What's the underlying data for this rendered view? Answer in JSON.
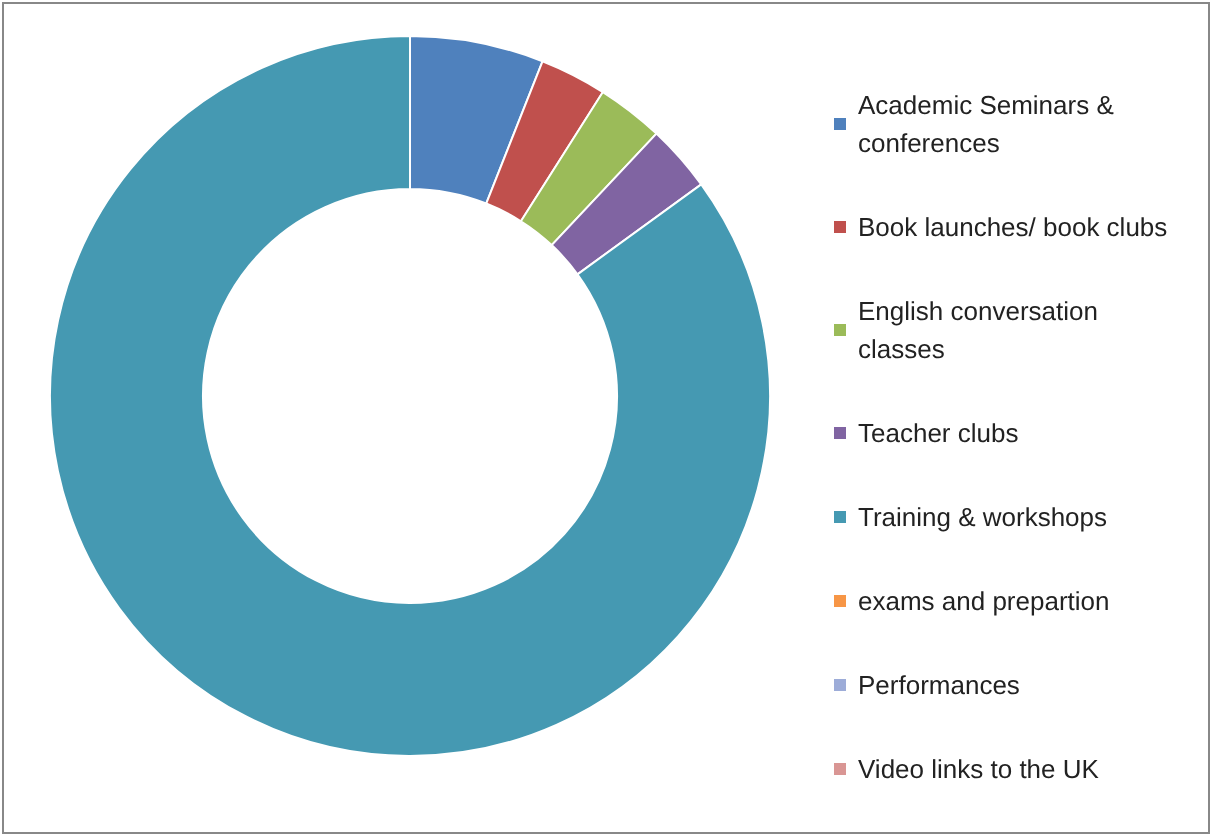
{
  "chart_data": {
    "type": "donut",
    "categories": [
      "Academic Seminars & conferences",
      "Book launches/ book clubs",
      "English conversation classes",
      "Teacher clubs",
      "Training & workshops",
      "exams and prepartion",
      "Performances",
      "Video links to the UK"
    ],
    "values": [
      6,
      3,
      3,
      3,
      85,
      0,
      0,
      0
    ],
    "colors": [
      "#4f81bd",
      "#c0504d",
      "#9bbb59",
      "#8064a2",
      "#4599b2",
      "#f79646",
      "#9dacd8",
      "#d99694"
    ],
    "legend": "right"
  }
}
